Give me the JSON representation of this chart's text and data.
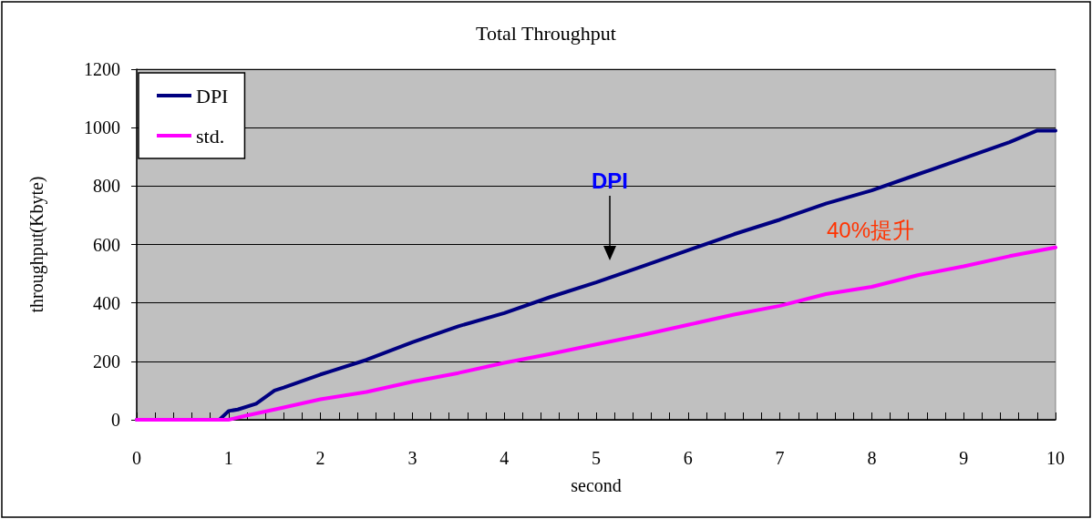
{
  "chart_data": {
    "type": "line",
    "title": "Total Throughput",
    "xlabel": "second",
    "ylabel": "throughput(Kbyte)",
    "xlim": [
      0,
      10
    ],
    "xticks": [
      0,
      1,
      2,
      3,
      4,
      5,
      6,
      7,
      8,
      9,
      10
    ],
    "ylim": [
      0,
      1200
    ],
    "yticks": [
      0,
      200,
      400,
      600,
      800,
      1000,
      1200
    ],
    "grid": "y",
    "legend": "top left",
    "marker": "none",
    "line_style": "solid",
    "series": [
      {
        "name": "DPI",
        "color": "#000080",
        "x": [
          0,
          0.9,
          1.0,
          1.1,
          1.3,
          1.5,
          1.6,
          2,
          2.1,
          2.5,
          3,
          3.5,
          4,
          4.5,
          5,
          5.5,
          6,
          6.5,
          7,
          7.5,
          8,
          8.5,
          9,
          9.5,
          9.8,
          10
        ],
        "values": [
          0,
          0,
          30,
          35,
          55,
          100,
          110,
          155,
          165,
          205,
          265,
          320,
          365,
          420,
          470,
          525,
          580,
          635,
          685,
          740,
          785,
          840,
          895,
          950,
          990,
          990
        ]
      },
      {
        "name": "std.",
        "color": "#ff00ff",
        "x": [
          0,
          1.0,
          1.2,
          1.5,
          2,
          2.5,
          3,
          3.5,
          4,
          4.5,
          5,
          5.5,
          6,
          6.5,
          7,
          7.5,
          8,
          8.5,
          9,
          9.5,
          10
        ],
        "values": [
          0,
          0,
          15,
          35,
          70,
          95,
          130,
          160,
          195,
          225,
          258,
          290,
          325,
          360,
          390,
          430,
          455,
          495,
          525,
          560,
          590
        ]
      }
    ],
    "annotations": [
      "DPI",
      "40%提升"
    ]
  }
}
